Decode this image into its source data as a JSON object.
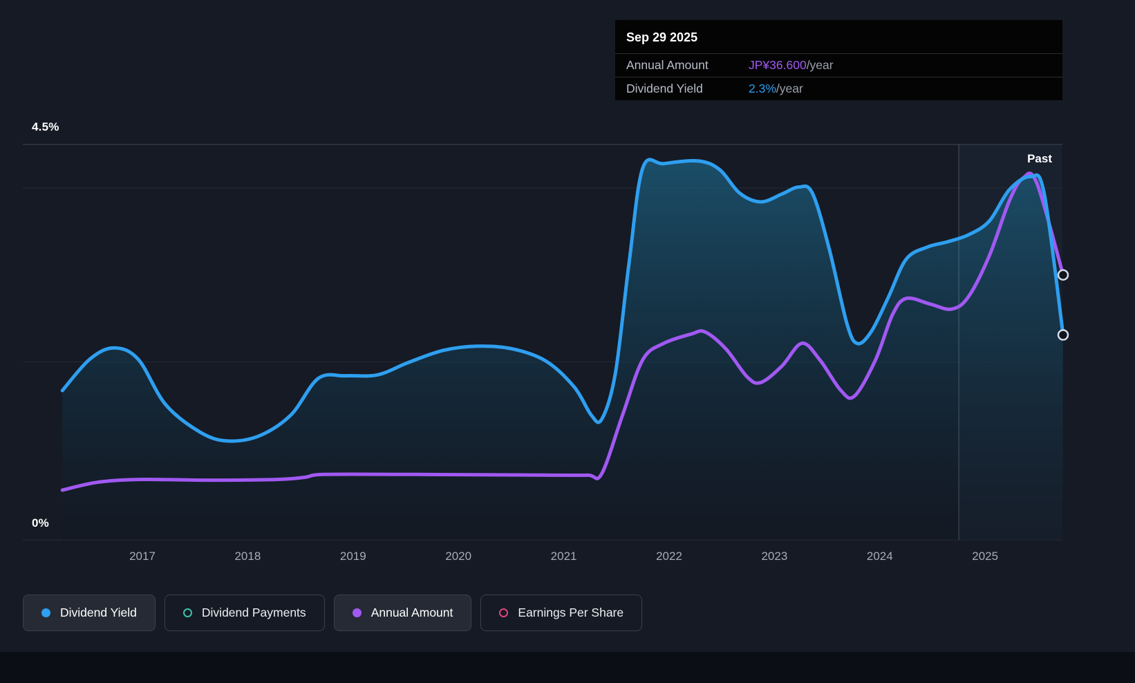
{
  "colors": {
    "background": "#151a24",
    "footer_band": "#0b0e14",
    "dividend_yield_blue": "#2f9ff0",
    "annual_amount_purple": "#a159f2",
    "dividend_payments_teal": "#3cc2ad",
    "earnings_per_share_pink": "#e0457b",
    "grid_major": "#3e4555",
    "grid_minor": "#262d39",
    "tooltip_bg": "#040404",
    "text_muted": "#a6adb9"
  },
  "tooltip": {
    "date": "Sep 29 2025",
    "rows": [
      {
        "label": "Annual Amount",
        "value": "JP¥36.600",
        "suffix": "/year",
        "color": "#a159f2"
      },
      {
        "label": "Dividend Yield",
        "value": "2.3%",
        "suffix": "/year",
        "color": "#2f9ff0"
      }
    ]
  },
  "axis": {
    "y_top_label": "4.5%",
    "y_bottom_label": "0%",
    "past_label": "Past"
  },
  "legend": [
    {
      "label": "Dividend Yield",
      "marker": "filled-dot",
      "color": "#2f9ff0",
      "active": true
    },
    {
      "label": "Dividend Payments",
      "marker": "ring",
      "color": "#3cc2ad",
      "active": false
    },
    {
      "label": "Annual Amount",
      "marker": "filled-dot",
      "color": "#a159f2",
      "active": true
    },
    {
      "label": "Earnings Per Share",
      "marker": "ring",
      "color": "#e0457b",
      "active": false
    }
  ],
  "chart_data": {
    "type": "area",
    "title": "",
    "x_axis": {
      "tick_labels": [
        "2017",
        "2018",
        "2019",
        "2020",
        "2021",
        "2022",
        "2023",
        "2024",
        "2025"
      ],
      "tick_years": [
        2017,
        2018,
        2019,
        2020,
        2021,
        2022,
        2023,
        2024,
        2025
      ],
      "range_years": [
        2016.24,
        2025.78
      ]
    },
    "y_axis": {
      "top_label": "4.5%",
      "bottom_label": "0%",
      "ylim_percent": [
        0,
        4.5
      ],
      "gridline_values_percent": [
        4.5,
        4.0,
        2.0,
        0
      ]
    },
    "past_divider_year": 2024.75,
    "past_label": "Past",
    "legend_position": "bottom",
    "grid": true,
    "series": [
      {
        "name": "Dividend Yield",
        "unit": "%",
        "color": "#2f9ff0",
        "fill_area": true,
        "end_marker": true,
        "ylim": [
          0,
          4.5
        ],
        "points": [
          [
            2016.24,
            1.67
          ],
          [
            2016.5,
            2.03
          ],
          [
            2016.73,
            2.16
          ],
          [
            2016.96,
            2.03
          ],
          [
            2017.22,
            1.51
          ],
          [
            2017.55,
            1.19
          ],
          [
            2017.81,
            1.09
          ],
          [
            2018.11,
            1.15
          ],
          [
            2018.41,
            1.39
          ],
          [
            2018.67,
            1.81
          ],
          [
            2018.93,
            1.84
          ],
          [
            2019.23,
            1.85
          ],
          [
            2019.52,
            1.99
          ],
          [
            2019.85,
            2.13
          ],
          [
            2020.18,
            2.18
          ],
          [
            2020.51,
            2.15
          ],
          [
            2020.83,
            2.01
          ],
          [
            2021.1,
            1.71
          ],
          [
            2021.26,
            1.39
          ],
          [
            2021.36,
            1.34
          ],
          [
            2021.49,
            1.87
          ],
          [
            2021.62,
            3.14
          ],
          [
            2021.75,
            4.23
          ],
          [
            2021.95,
            4.28
          ],
          [
            2022.28,
            4.31
          ],
          [
            2022.48,
            4.21
          ],
          [
            2022.67,
            3.94
          ],
          [
            2022.87,
            3.84
          ],
          [
            2023.07,
            3.93
          ],
          [
            2023.23,
            4.01
          ],
          [
            2023.36,
            3.94
          ],
          [
            2023.52,
            3.3
          ],
          [
            2023.69,
            2.43
          ],
          [
            2023.79,
            2.21
          ],
          [
            2023.92,
            2.35
          ],
          [
            2024.08,
            2.74
          ],
          [
            2024.25,
            3.18
          ],
          [
            2024.45,
            3.32
          ],
          [
            2024.64,
            3.38
          ],
          [
            2024.84,
            3.46
          ],
          [
            2025.04,
            3.62
          ],
          [
            2025.23,
            3.98
          ],
          [
            2025.43,
            4.13
          ],
          [
            2025.56,
            3.94
          ],
          [
            2025.74,
            2.31
          ]
        ],
        "end_value_label": "2.3%/year"
      },
      {
        "name": "Annual Amount",
        "unit": "JP¥/year",
        "color": "#a159f2",
        "fill_area": false,
        "end_marker": true,
        "ylim": [
          0,
          54.9
        ],
        "values_estimated": true,
        "points": [
          [
            2016.24,
            6.4
          ],
          [
            2016.57,
            7.5
          ],
          [
            2016.96,
            7.9
          ],
          [
            2017.62,
            7.8
          ],
          [
            2018.27,
            7.9
          ],
          [
            2018.54,
            8.2
          ],
          [
            2018.73,
            8.6
          ],
          [
            2019.59,
            8.6
          ],
          [
            2020.9,
            8.5
          ],
          [
            2021.23,
            8.5
          ],
          [
            2021.36,
            8.7
          ],
          [
            2021.56,
            17.0
          ],
          [
            2021.75,
            24.7
          ],
          [
            2021.95,
            27.0
          ],
          [
            2022.21,
            28.3
          ],
          [
            2022.34,
            28.6
          ],
          [
            2022.54,
            26.2
          ],
          [
            2022.74,
            22.3
          ],
          [
            2022.87,
            21.5
          ],
          [
            2023.07,
            23.8
          ],
          [
            2023.26,
            27.0
          ],
          [
            2023.43,
            24.7
          ],
          [
            2023.63,
            20.4
          ],
          [
            2023.76,
            19.6
          ],
          [
            2023.96,
            24.7
          ],
          [
            2024.12,
            31.0
          ],
          [
            2024.25,
            33.3
          ],
          [
            2024.48,
            32.5
          ],
          [
            2024.68,
            31.8
          ],
          [
            2024.84,
            33.5
          ],
          [
            2025.04,
            39.3
          ],
          [
            2025.23,
            47.0
          ],
          [
            2025.36,
            50.2
          ],
          [
            2025.49,
            49.5
          ],
          [
            2025.74,
            36.6
          ]
        ],
        "end_value_label": "JP¥36.600/year"
      }
    ]
  }
}
